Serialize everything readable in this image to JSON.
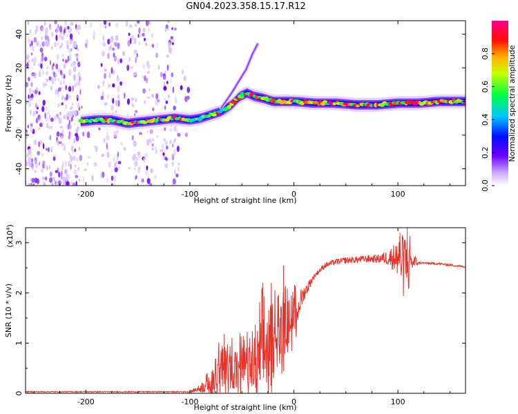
{
  "figure_title": "GN04.2023.358.15.17.R12",
  "chart_data": [
    {
      "type": "heatmap",
      "title": "",
      "xlabel": "Height of straight line (km)",
      "ylabel": "Frequency (Hz)",
      "xlim": [
        -258,
        165
      ],
      "ylim": [
        -50,
        48
      ],
      "xticks": [
        -200,
        -100,
        0,
        100
      ],
      "yticks": [
        -40,
        -20,
        0,
        20,
        40
      ],
      "ytick_labels": [
        "-40",
        "-20",
        "0",
        "20",
        "40"
      ],
      "colorbar": {
        "label": "Normalized spectral amplitude",
        "range": [
          0.0,
          1.0
        ],
        "ticks": [
          0.0,
          0.2,
          0.4,
          0.6,
          0.8
        ],
        "tick_labels": [
          "0.0",
          "0.2",
          "0.4",
          "0.6",
          "0.8"
        ],
        "colors": [
          "#ffffff",
          "#7f00ff",
          "#0000ff",
          "#00ffff",
          "#00ff00",
          "#ffff00",
          "#ff0000",
          "#ff0080"
        ]
      },
      "ridge": {
        "x": [
          -205,
          -190,
          -175,
          -160,
          -145,
          -130,
          -115,
          -100,
          -90,
          -80,
          -70,
          -60,
          -52,
          -45,
          -38,
          -30,
          -20,
          -10,
          0,
          20,
          40,
          60,
          80,
          100,
          120,
          140,
          165
        ],
        "y": [
          -12,
          -11,
          -11,
          -13,
          -12,
          -11,
          -10,
          -11,
          -10,
          -8,
          -6,
          -2,
          3,
          5,
          3,
          2,
          0,
          0,
          0,
          -1,
          -1,
          -2,
          -2,
          -1,
          -1,
          0,
          0
        ]
      },
      "branch": {
        "x": [
          -70,
          -60,
          -52,
          -46,
          -40,
          -35
        ],
        "y": [
          -4,
          5,
          13,
          19,
          28,
          34
        ]
      },
      "noise_region_x": [
        -258,
        -100
      ]
    },
    {
      "type": "line",
      "title": "",
      "xlabel": "Height of straight line (km)",
      "ylabel": "SNR (10 * v/v)",
      "multiplier_label": "(x10^4)",
      "xlim": [
        -258,
        165
      ],
      "ylim": [
        0,
        3.3
      ],
      "xticks": [
        -200,
        -100,
        0,
        100
      ],
      "yticks": [
        0,
        1,
        2,
        3
      ],
      "line_color": "#e8312a",
      "envelope": {
        "x": [
          -258,
          -100,
          -90,
          -80,
          -70,
          -60,
          -50,
          -40,
          -30,
          -20,
          -10,
          0,
          10,
          20,
          30,
          40,
          50,
          60,
          70,
          80,
          90,
          100,
          110,
          115,
          120,
          140,
          165
        ],
        "y": [
          0.03,
          0.03,
          0.1,
          0.25,
          0.45,
          0.55,
          0.5,
          0.55,
          0.8,
          1.1,
          1.3,
          1.55,
          2.0,
          2.35,
          2.55,
          2.62,
          2.65,
          2.66,
          2.68,
          2.68,
          2.7,
          2.72,
          2.66,
          2.62,
          2.6,
          2.58,
          2.52
        ]
      },
      "noise_amplitude": {
        "x": [
          -258,
          -100,
          -90,
          -70,
          -60,
          -40,
          -30,
          -20,
          -10,
          0,
          10,
          20,
          40,
          80,
          90,
          100,
          105,
          110,
          115,
          120,
          165
        ],
        "y": [
          0.01,
          0.01,
          0.08,
          0.5,
          0.45,
          0.45,
          0.9,
          0.75,
          0.55,
          0.4,
          0.15,
          0.05,
          0.06,
          0.08,
          0.15,
          0.35,
          0.5,
          0.45,
          0.2,
          0.02,
          0.02
        ]
      },
      "peak_marks": [
        {
          "x": -67,
          "y": 1.18
        },
        {
          "x": -30,
          "y": 2.2
        },
        {
          "x": -10,
          "y": 2.55
        },
        {
          "x": 102,
          "y": 3.2
        },
        {
          "x": 109,
          "y": 3.3
        }
      ]
    }
  ]
}
